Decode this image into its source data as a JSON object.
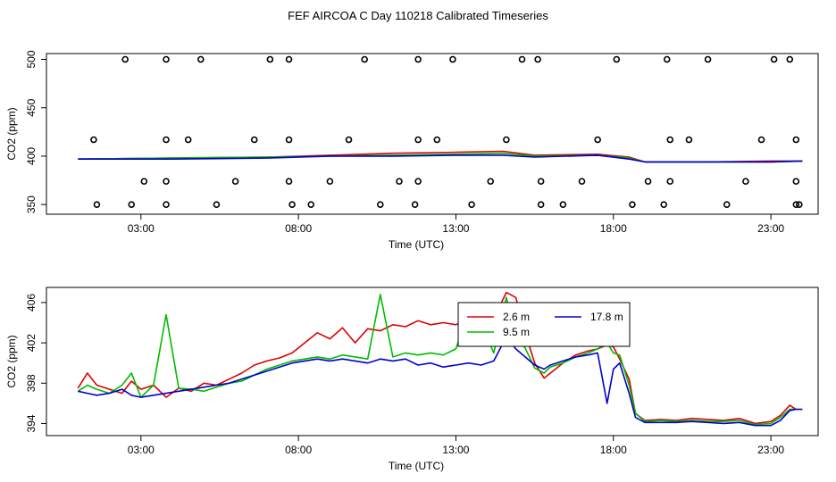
{
  "title": "FEF AIRCOA C  Day 110218  Calibrated Timeseries",
  "colors": {
    "2.6 m": "#dd0000",
    "9.5 m": "#00bb00",
    "17.8 m": "#0000cc",
    "frame": "#000000"
  },
  "chart_data": [
    {
      "type": "line",
      "title": "",
      "xlabel": "Time (UTC)",
      "ylabel": "CO2 (ppm)",
      "xlim": [
        0,
        24.5
      ],
      "ylim": [
        340,
        506
      ],
      "xticks": [
        3,
        8,
        13,
        18,
        23
      ],
      "xtick_labels": [
        "03:00",
        "08:00",
        "13:00",
        "18:00",
        "23:00"
      ],
      "yticks": [
        350,
        400,
        450,
        500
      ],
      "ytick_labels": [
        "350",
        "400",
        "450",
        "500"
      ],
      "grid": false,
      "legend": "none",
      "series": [
        {
          "color": "#dd0000",
          "x": [
            1.0,
            4.0,
            7.0,
            9.0,
            11.0,
            13.0,
            14.5,
            15.5,
            17.5,
            18.5,
            19.0,
            21.0,
            23.0,
            24.0
          ],
          "y": [
            397,
            398,
            399,
            401,
            403,
            404,
            405,
            401,
            402,
            399,
            394,
            394,
            395,
            395
          ]
        },
        {
          "color": "#00bb00",
          "x": [
            1.0,
            4.0,
            7.0,
            9.0,
            11.0,
            13.0,
            14.5,
            15.5,
            17.5,
            18.5,
            19.0,
            21.0,
            23.0,
            24.0
          ],
          "y": [
            397,
            398,
            399,
            400,
            401,
            402,
            403,
            400,
            401,
            398,
            394,
            394,
            394,
            395
          ]
        },
        {
          "color": "#0000cc",
          "x": [
            1.0,
            4.0,
            7.0,
            9.0,
            11.0,
            13.0,
            14.5,
            15.5,
            17.5,
            18.5,
            19.0,
            21.0,
            23.0,
            24.0
          ],
          "y": [
            397,
            397,
            398,
            400,
            400,
            401,
            401,
            399,
            401,
            397,
            394,
            394,
            394,
            395
          ]
        }
      ],
      "markers": {
        "x": [
          1.6,
          2.5,
          1.5,
          3.1,
          2.7,
          3.8,
          3.8,
          3.8,
          3.8,
          4.5,
          4.9,
          5.4,
          6.0,
          6.6,
          7.1,
          7.7,
          7.7,
          7.7,
          7.8,
          8.4,
          9.0,
          9.6,
          10.1,
          10.6,
          11.2,
          11.8,
          11.8,
          11.8,
          11.7,
          12.4,
          12.9,
          13.5,
          14.1,
          14.6,
          15.1,
          15.6,
          15.7,
          15.7,
          16.4,
          17.0,
          17.5,
          18.1,
          18.6,
          19.1,
          19.6,
          19.8,
          19.8,
          19.7,
          20.4,
          21.0,
          21.6,
          22.2,
          22.7,
          23.1,
          23.6,
          23.8,
          23.8,
          23.8,
          23.9
        ],
        "y": [
          350,
          500,
          417,
          374,
          350,
          500,
          417,
          374,
          350,
          417,
          500,
          350,
          374,
          417,
          500,
          500,
          417,
          374,
          350,
          350,
          374,
          417,
          500,
          350,
          374,
          500,
          417,
          374,
          350,
          417,
          500,
          350,
          374,
          417,
          500,
          500,
          374,
          350,
          350,
          374,
          417,
          500,
          350,
          374,
          350,
          374,
          417,
          500,
          417,
          500,
          350,
          374,
          417,
          500,
          500,
          417,
          374,
          350,
          350
        ]
      }
    },
    {
      "type": "line",
      "title": "",
      "xlabel": "Time (UTC)",
      "ylabel": "CO2 (ppm)",
      "xlim": [
        0,
        24.5
      ],
      "ylim": [
        392.8,
        407.5
      ],
      "xticks": [
        3,
        8,
        13,
        18,
        23
      ],
      "xtick_labels": [
        "03:00",
        "08:00",
        "13:00",
        "18:00",
        "23:00"
      ],
      "yticks": [
        394,
        398,
        402,
        406
      ],
      "ytick_labels": [
        "394",
        "398",
        "402",
        "406"
      ],
      "grid": false,
      "legend": "top-center",
      "series": [
        {
          "name": "2.6 m",
          "color": "#dd0000",
          "x": [
            1.0,
            1.3,
            1.6,
            2.0,
            2.4,
            2.7,
            3.0,
            3.4,
            3.8,
            4.2,
            4.6,
            5.0,
            5.4,
            5.8,
            6.2,
            6.6,
            7.0,
            7.4,
            7.8,
            8.2,
            8.6,
            9.0,
            9.4,
            9.8,
            10.2,
            10.6,
            11.0,
            11.4,
            11.8,
            12.2,
            12.6,
            13.0,
            13.4,
            13.8,
            14.2,
            14.6,
            14.9,
            15.2,
            15.5,
            15.8,
            16.0,
            16.4,
            16.8,
            17.2,
            17.5,
            17.8,
            18.0,
            18.2,
            18.5,
            18.7,
            19.0,
            19.5,
            20.0,
            20.5,
            21.0,
            21.5,
            22.0,
            22.5,
            23.0,
            23.3,
            23.6,
            23.8
          ],
          "y": [
            397.5,
            399.0,
            397.8,
            397.4,
            397.0,
            398.2,
            397.4,
            397.8,
            396.6,
            397.5,
            397.2,
            398.0,
            397.8,
            398.4,
            399.0,
            399.8,
            400.2,
            400.5,
            401.0,
            402.0,
            403.0,
            402.4,
            403.5,
            402.0,
            403.4,
            403.2,
            403.8,
            403.6,
            404.2,
            403.8,
            404.0,
            403.8,
            404.4,
            405.0,
            404.4,
            407.0,
            406.5,
            403.0,
            400.0,
            398.5,
            399.0,
            400.0,
            400.8,
            401.2,
            401.4,
            401.8,
            401.6,
            400.4,
            398.4,
            395.0,
            394.3,
            394.4,
            394.3,
            394.5,
            394.4,
            394.3,
            394.5,
            394.0,
            394.2,
            394.8,
            395.8,
            395.4
          ]
        },
        {
          "name": "9.5 m",
          "color": "#00bb00",
          "x": [
            1.0,
            1.3,
            1.6,
            2.0,
            2.4,
            2.7,
            3.0,
            3.4,
            3.8,
            4.2,
            4.6,
            5.0,
            5.4,
            5.8,
            6.2,
            6.6,
            7.0,
            7.4,
            7.8,
            8.2,
            8.6,
            9.0,
            9.4,
            9.8,
            10.2,
            10.6,
            11.0,
            11.4,
            11.8,
            12.2,
            12.6,
            13.0,
            13.4,
            13.8,
            14.2,
            14.6,
            14.9,
            15.2,
            15.5,
            15.8,
            16.0,
            16.4,
            16.8,
            17.2,
            17.5,
            17.8,
            18.0,
            18.2,
            18.5,
            18.7,
            19.0,
            19.5,
            20.0,
            20.5,
            21.0,
            21.5,
            22.0,
            22.5,
            23.0,
            23.3,
            23.6,
            23.8
          ],
          "y": [
            397.2,
            397.8,
            397.4,
            397.0,
            397.8,
            399.0,
            396.6,
            397.8,
            404.8,
            397.5,
            397.4,
            397.2,
            397.6,
            398.0,
            398.2,
            398.8,
            399.4,
            399.8,
            400.2,
            400.4,
            400.6,
            400.4,
            400.8,
            400.6,
            400.4,
            406.8,
            400.6,
            401.0,
            400.8,
            401.0,
            400.8,
            401.4,
            405.0,
            404.0,
            401.0,
            406.5,
            402.6,
            401.5,
            399.5,
            399.0,
            399.6,
            400.0,
            400.6,
            401.0,
            401.4,
            402.0,
            401.0,
            400.8,
            397.8,
            395.0,
            394.2,
            394.3,
            394.2,
            394.3,
            394.2,
            394.2,
            394.3,
            393.9,
            394.0,
            394.6,
            395.4,
            395.4
          ]
        },
        {
          "name": "17.8 m",
          "color": "#0000cc",
          "x": [
            1.0,
            1.3,
            1.6,
            2.0,
            2.4,
            2.7,
            3.0,
            3.4,
            3.8,
            4.2,
            4.6,
            5.0,
            5.4,
            5.8,
            6.2,
            6.6,
            7.0,
            7.4,
            7.8,
            8.2,
            8.6,
            9.0,
            9.4,
            9.8,
            10.2,
            10.6,
            11.0,
            11.4,
            11.8,
            12.2,
            12.6,
            13.0,
            13.4,
            13.8,
            14.2,
            14.6,
            14.9,
            15.2,
            15.5,
            15.8,
            16.0,
            16.4,
            16.8,
            17.2,
            17.5,
            17.8,
            18.0,
            18.2,
            18.5,
            18.7,
            19.0,
            19.5,
            20.0,
            20.5,
            21.0,
            21.5,
            22.0,
            22.5,
            23.0,
            23.3,
            23.6,
            23.8,
            24.0
          ],
          "y": [
            397.2,
            397.0,
            396.8,
            397.0,
            397.4,
            396.8,
            396.6,
            396.8,
            397.0,
            397.2,
            397.4,
            397.6,
            397.8,
            398.0,
            398.4,
            398.8,
            399.2,
            399.6,
            400.0,
            400.2,
            400.4,
            400.2,
            400.4,
            400.2,
            400.0,
            400.4,
            400.2,
            400.4,
            399.8,
            400.0,
            399.6,
            399.8,
            400.0,
            399.8,
            400.2,
            402.6,
            401.4,
            400.6,
            399.8,
            399.4,
            399.8,
            400.2,
            400.6,
            400.8,
            401.0,
            396.0,
            399.4,
            400.0,
            397.0,
            394.6,
            394.1,
            394.1,
            394.1,
            394.2,
            394.1,
            394.0,
            394.1,
            393.8,
            393.8,
            394.3,
            395.3,
            395.4,
            395.4
          ]
        }
      ]
    }
  ]
}
